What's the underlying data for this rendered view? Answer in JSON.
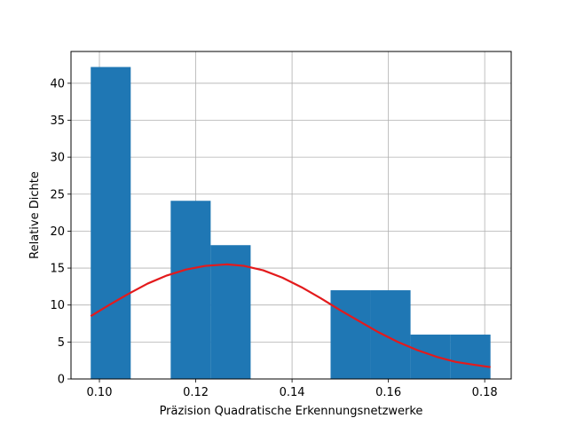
{
  "chart_data": {
    "type": "bar",
    "title": "",
    "xlabel": "Präzision Quadratische Erkennungsnetzwerke",
    "ylabel": "Relative Dichte",
    "xlim": [
      0.0941,
      0.1855
    ],
    "ylim": [
      0,
      44.3
    ],
    "grid": true,
    "bar_color": "#1f77b4",
    "curve_color": "#e31a1c",
    "x_ticks": [
      0.1,
      0.12,
      0.14,
      0.16,
      0.18
    ],
    "x_tick_labels": [
      "0.10",
      "0.12",
      "0.14",
      "0.16",
      "0.18"
    ],
    "y_ticks": [
      0,
      5,
      10,
      15,
      20,
      25,
      30,
      35,
      40
    ],
    "y_tick_labels": [
      "0",
      "5",
      "10",
      "15",
      "20",
      "25",
      "30",
      "35",
      "40"
    ],
    "bins": [
      {
        "x0": 0.0982,
        "x1": 0.1065,
        "value": 42.2
      },
      {
        "x0": 0.1065,
        "x1": 0.1148,
        "value": 0
      },
      {
        "x0": 0.1148,
        "x1": 0.1231,
        "value": 24.1
      },
      {
        "x0": 0.1231,
        "x1": 0.1314,
        "value": 18.1
      },
      {
        "x0": 0.1314,
        "x1": 0.1397,
        "value": 0
      },
      {
        "x0": 0.1397,
        "x1": 0.148,
        "value": 0
      },
      {
        "x0": 0.148,
        "x1": 0.1563,
        "value": 12.0
      },
      {
        "x0": 0.1563,
        "x1": 0.1646,
        "value": 12.0
      },
      {
        "x0": 0.1646,
        "x1": 0.1729,
        "value": 6.0
      },
      {
        "x0": 0.1729,
        "x1": 0.1812,
        "value": 6.0
      }
    ],
    "curve": {
      "x": [
        0.0982,
        0.102,
        0.106,
        0.11,
        0.114,
        0.118,
        0.122,
        0.1265,
        0.13,
        0.134,
        0.138,
        0.142,
        0.146,
        0.15,
        0.154,
        0.158,
        0.162,
        0.166,
        0.17,
        0.174,
        0.178,
        0.1812
      ],
      "y": [
        8.5,
        10.0,
        11.5,
        12.9,
        14.0,
        14.8,
        15.3,
        15.5,
        15.3,
        14.7,
        13.7,
        12.4,
        10.9,
        9.3,
        7.8,
        6.3,
        5.0,
        3.9,
        3.0,
        2.3,
        1.9,
        1.6
      ]
    }
  }
}
